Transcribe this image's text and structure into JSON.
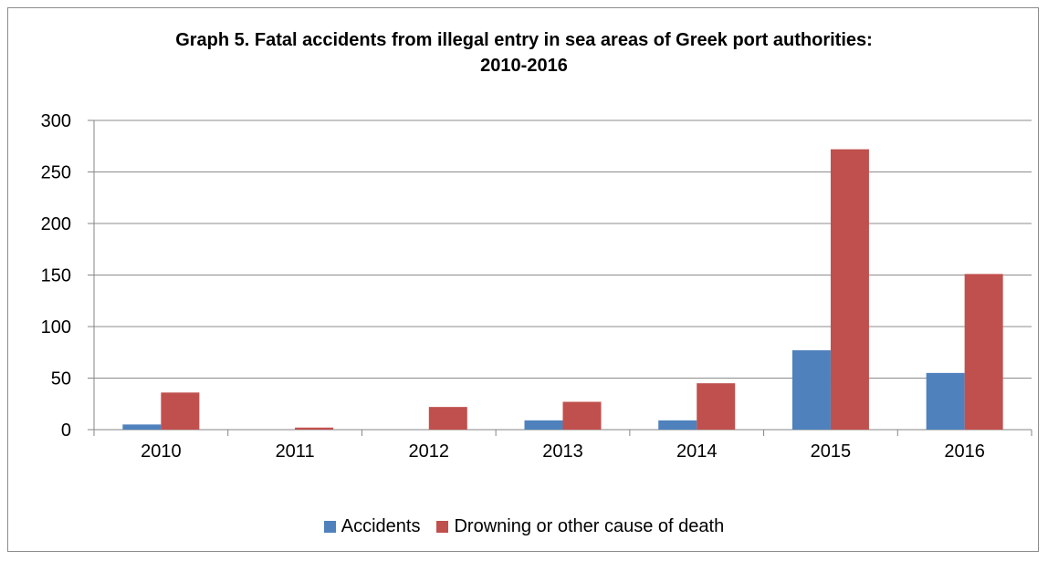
{
  "chart_data": {
    "type": "bar",
    "title_line1": "Graph 5. Fatal accidents from illegal entry in sea areas of Greek port authorities:",
    "title_line2": "2010-2016",
    "categories": [
      "2010",
      "2011",
      "2012",
      "2013",
      "2014",
      "2015",
      "2016"
    ],
    "series": [
      {
        "name": "Accidents",
        "color": "#4f81bd",
        "values": [
          5,
          0,
          0,
          9,
          9,
          77,
          55
        ]
      },
      {
        "name": "Drowning or other cause of death",
        "color": "#c0504d",
        "values": [
          36,
          2,
          22,
          27,
          45,
          272,
          151
        ]
      }
    ],
    "ylim": [
      0,
      300
    ],
    "yticks": [
      0,
      50,
      100,
      150,
      200,
      250,
      300
    ],
    "grid": true,
    "legend": "bottom"
  }
}
